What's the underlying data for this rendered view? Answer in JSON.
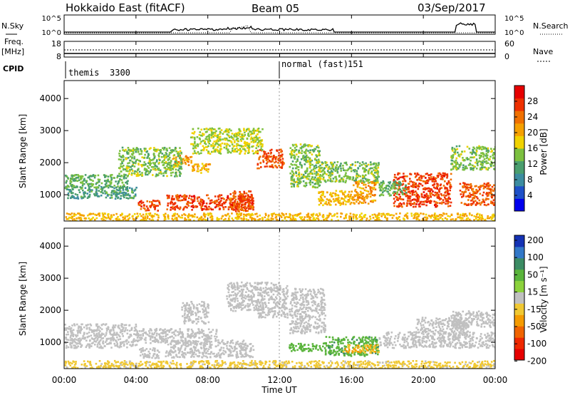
{
  "header": {
    "station": "Hokkaido East (fitACF)",
    "beam": "Beam 05",
    "date": "03/Sep/2017"
  },
  "top_panels": {
    "nsky_label": "N.Sky",
    "nsearch_label": "N.Search",
    "freq_label_line1": "Freq.",
    "freq_label_line2": "[MHz]",
    "nave_label": "Nave",
    "cpid_label": "CPID",
    "noise_left_ticks": [
      "10^5",
      "10^0"
    ],
    "noise_right_ticks": [
      "10^5",
      "10^0"
    ],
    "freq_left_ticks": [
      "18",
      "8"
    ],
    "nave_right_ticks": [
      "60",
      "0"
    ],
    "cpid_segments": [
      {
        "name": "themis",
        "id": "3300",
        "start_hour": 0
      },
      {
        "name": "normal (fast)",
        "id": "151",
        "start_hour": 12
      }
    ]
  },
  "axes": {
    "xlabel": "Time UT",
    "x_ticks": [
      "00:00",
      "04:00",
      "08:00",
      "12:00",
      "16:00",
      "20:00",
      "00:00"
    ],
    "ylabel": "Slant Range [km]",
    "y_ticks": [
      "1000",
      "2000",
      "3000",
      "4000"
    ]
  },
  "power_colorbar": {
    "label": "Power [dB]",
    "ticks": [
      "4",
      "8",
      "12",
      "16",
      "20",
      "24",
      "28"
    ],
    "colors": [
      "#0000ee",
      "#1e50c8",
      "#3c8ca0",
      "#4a9e6e",
      "#7cc040",
      "#f0d200",
      "#f5a000",
      "#f07000",
      "#ee3000",
      "#e60000"
    ]
  },
  "velocity_colorbar": {
    "label": "Velocity [m s⁻¹]",
    "ticks": [
      "200",
      "100",
      "50",
      "15",
      "-15",
      "-50",
      "-100",
      "-200"
    ],
    "colors": [
      "#1432b4",
      "#3278c8",
      "#3c8c64",
      "#5ab43c",
      "#8cd23c",
      "#c0c0c0",
      "#f0c832",
      "#f59b00",
      "#f06400",
      "#ee2800",
      "#e60000"
    ]
  },
  "chart_data": [
    {
      "type": "heatmap",
      "name": "Power",
      "x_range_hours": [
        0,
        24
      ],
      "y_range_km": [
        180,
        4560
      ],
      "regions": [
        {
          "t0": 4.1,
          "t1": 5.3,
          "r0": 530,
          "r1": 850,
          "value": 28
        },
        {
          "t0": 5.6,
          "t1": 10.5,
          "r0": 550,
          "r1": 1020,
          "value": 28
        },
        {
          "t0": 9.2,
          "t1": 10.5,
          "r0": 500,
          "r1": 1150,
          "value": 26
        },
        {
          "t0": 10.7,
          "t1": 12.2,
          "r0": 1850,
          "r1": 2450,
          "value": 27
        },
        {
          "t0": 6.0,
          "t1": 7.1,
          "r0": 1950,
          "r1": 2250,
          "value": 22
        },
        {
          "t0": 7.1,
          "t1": 8.1,
          "r0": 1700,
          "r1": 2000,
          "value": 21
        },
        {
          "t0": 14.1,
          "t1": 16.0,
          "r0": 700,
          "r1": 1150,
          "value": 20
        },
        {
          "t0": 16.0,
          "t1": 17.3,
          "r0": 750,
          "r1": 1500,
          "value": 22
        },
        {
          "t0": 18.3,
          "t1": 21.5,
          "r0": 650,
          "r1": 1700,
          "value": 28
        },
        {
          "t0": 22.0,
          "t1": 24.0,
          "r0": 700,
          "r1": 1400,
          "value": 26
        },
        {
          "t0": 0.0,
          "t1": 4.0,
          "r0": 900,
          "r1": 1300,
          "value": 10
        },
        {
          "t0": 0.0,
          "t1": 3.5,
          "r0": 1250,
          "r1": 1650,
          "value": 12
        },
        {
          "t0": 3.0,
          "t1": 6.5,
          "r0": 1600,
          "r1": 2500,
          "value": 14
        },
        {
          "t0": 7.0,
          "t1": 11.0,
          "r0": 2300,
          "r1": 3100,
          "value": 16
        },
        {
          "t0": 12.5,
          "t1": 14.2,
          "r0": 1250,
          "r1": 2600,
          "value": 14
        },
        {
          "t0": 14.0,
          "t1": 17.5,
          "r0": 1400,
          "r1": 2050,
          "value": 14
        },
        {
          "t0": 17.5,
          "t1": 19.0,
          "r0": 1000,
          "r1": 1450,
          "value": 12
        },
        {
          "t0": 21.5,
          "t1": 24.0,
          "r0": 1800,
          "r1": 2550,
          "value": 14
        },
        {
          "t0": 0.0,
          "t1": 24.0,
          "r0": 200,
          "r1": 450,
          "value": 20
        }
      ]
    },
    {
      "type": "heatmap",
      "name": "Velocity",
      "x_range_hours": [
        0,
        24
      ],
      "y_range_km": [
        180,
        4560
      ],
      "regions": [
        {
          "t0": 4.1,
          "t1": 5.3,
          "r0": 530,
          "r1": 850,
          "value": 0
        },
        {
          "t0": 5.6,
          "t1": 10.5,
          "r0": 550,
          "r1": 1100,
          "value": 0
        },
        {
          "t0": 0.0,
          "t1": 4.0,
          "r0": 850,
          "r1": 1600,
          "value": 0
        },
        {
          "t0": 4.0,
          "t1": 8.5,
          "r0": 1000,
          "r1": 1450,
          "value": 0
        },
        {
          "t0": 10.7,
          "t1": 12.4,
          "r0": 1800,
          "r1": 2900,
          "value": 0
        },
        {
          "t0": 9.0,
          "t1": 11.0,
          "r0": 2000,
          "r1": 2900,
          "value": 0
        },
        {
          "t0": 12.5,
          "t1": 14.5,
          "r0": 1300,
          "r1": 2700,
          "value": 0
        },
        {
          "t0": 6.5,
          "t1": 8.0,
          "r0": 1600,
          "r1": 2300,
          "value": 0
        },
        {
          "t0": 12.5,
          "t1": 14.5,
          "r0": 750,
          "r1": 1000,
          "value": 40
        },
        {
          "t0": 14.5,
          "t1": 17.5,
          "r0": 600,
          "r1": 1200,
          "value": 45
        },
        {
          "t0": 15.5,
          "t1": 17.5,
          "r0": 700,
          "r1": 950,
          "value": -30
        },
        {
          "t0": 17.5,
          "t1": 24.0,
          "r0": 850,
          "r1": 1350,
          "value": 0
        },
        {
          "t0": 19.5,
          "t1": 22.5,
          "r0": 1300,
          "r1": 1800,
          "value": 0
        },
        {
          "t0": 21.5,
          "t1": 24.0,
          "r0": 1500,
          "r1": 2000,
          "value": 0
        },
        {
          "t0": 0.0,
          "t1": 24.0,
          "r0": 200,
          "r1": 450,
          "value": -20
        }
      ]
    }
  ]
}
